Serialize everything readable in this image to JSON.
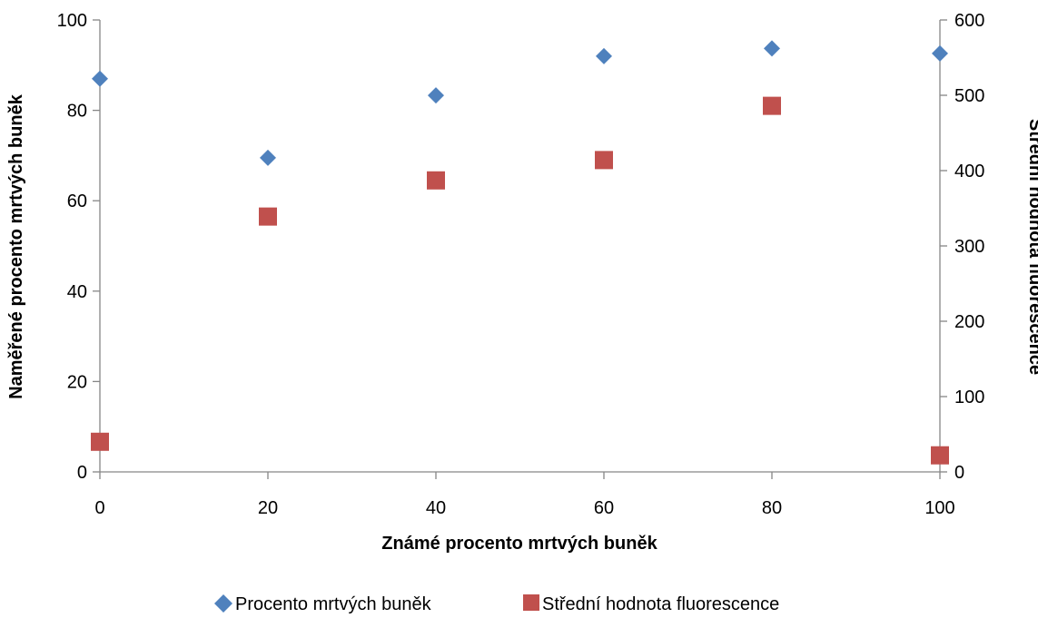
{
  "colors": {
    "series1": "#4F81BD",
    "series2": "#C0504D",
    "axis": "#868686"
  },
  "chart_data": {
    "type": "scatter",
    "title": "",
    "xlabel": "Známé procento mrtvých buněk",
    "ylabel": "Naměřené procento mrtvých buněk",
    "y2label": "Střední hodnota fluorescence",
    "xlim": [
      0,
      100
    ],
    "ylim": [
      0,
      100
    ],
    "y2lim": [
      0,
      600
    ],
    "x_ticks": [
      "0",
      "20",
      "40",
      "60",
      "80",
      "100"
    ],
    "y_ticks": [
      "0",
      "20",
      "40",
      "60",
      "80",
      "100"
    ],
    "y2_ticks": [
      "0",
      "100",
      "200",
      "300",
      "400",
      "500",
      "600"
    ],
    "grid": false,
    "legend_position": "bottom",
    "series": [
      {
        "name": "Procento mrtvých buněk",
        "marker": "diamond",
        "color": "#4F81BD",
        "axis": "left",
        "points": [
          {
            "x": 0,
            "y": 87
          },
          {
            "x": 20,
            "y": 69.5
          },
          {
            "x": 40,
            "y": 83.3
          },
          {
            "x": 60,
            "y": 92
          },
          {
            "x": 80,
            "y": 93.7
          },
          {
            "x": 100,
            "y": 92.6
          }
        ]
      },
      {
        "name": "Střední hodnota fluorescence",
        "marker": "square",
        "color": "#C0504D",
        "axis": "right",
        "points": [
          {
            "x": 0,
            "y": 40
          },
          {
            "x": 20,
            "y": 339
          },
          {
            "x": 40,
            "y": 387
          },
          {
            "x": 60,
            "y": 414
          },
          {
            "x": 80,
            "y": 486
          },
          {
            "x": 100,
            "y": 22
          }
        ]
      }
    ]
  }
}
